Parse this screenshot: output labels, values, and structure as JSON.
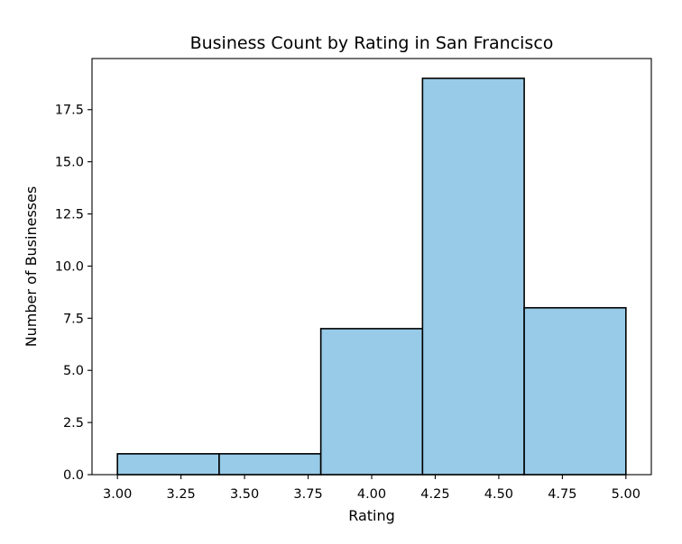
{
  "chart_data": {
    "type": "bar",
    "title": "Business Count by Rating in San Francisco",
    "xlabel": "Rating",
    "ylabel": "Number of Businesses",
    "bins": [
      {
        "start": 3.0,
        "end": 3.4,
        "count": 1
      },
      {
        "start": 3.4,
        "end": 3.8,
        "count": 1
      },
      {
        "start": 3.8,
        "end": 4.2,
        "count": 7
      },
      {
        "start": 4.2,
        "end": 4.6,
        "count": 19
      },
      {
        "start": 4.6,
        "end": 5.0,
        "count": 8
      }
    ],
    "xticks": [
      "3.00",
      "3.25",
      "3.50",
      "3.75",
      "4.00",
      "4.25",
      "4.50",
      "4.75",
      "5.00"
    ],
    "yticks": [
      "0.0",
      "2.5",
      "5.0",
      "7.5",
      "10.0",
      "12.5",
      "15.0",
      "17.5"
    ],
    "xlim": [
      2.9,
      5.1
    ],
    "ylim": [
      0,
      19.95
    ],
    "bar_color": "#97cbe8",
    "grid": false,
    "legend": "none"
  }
}
